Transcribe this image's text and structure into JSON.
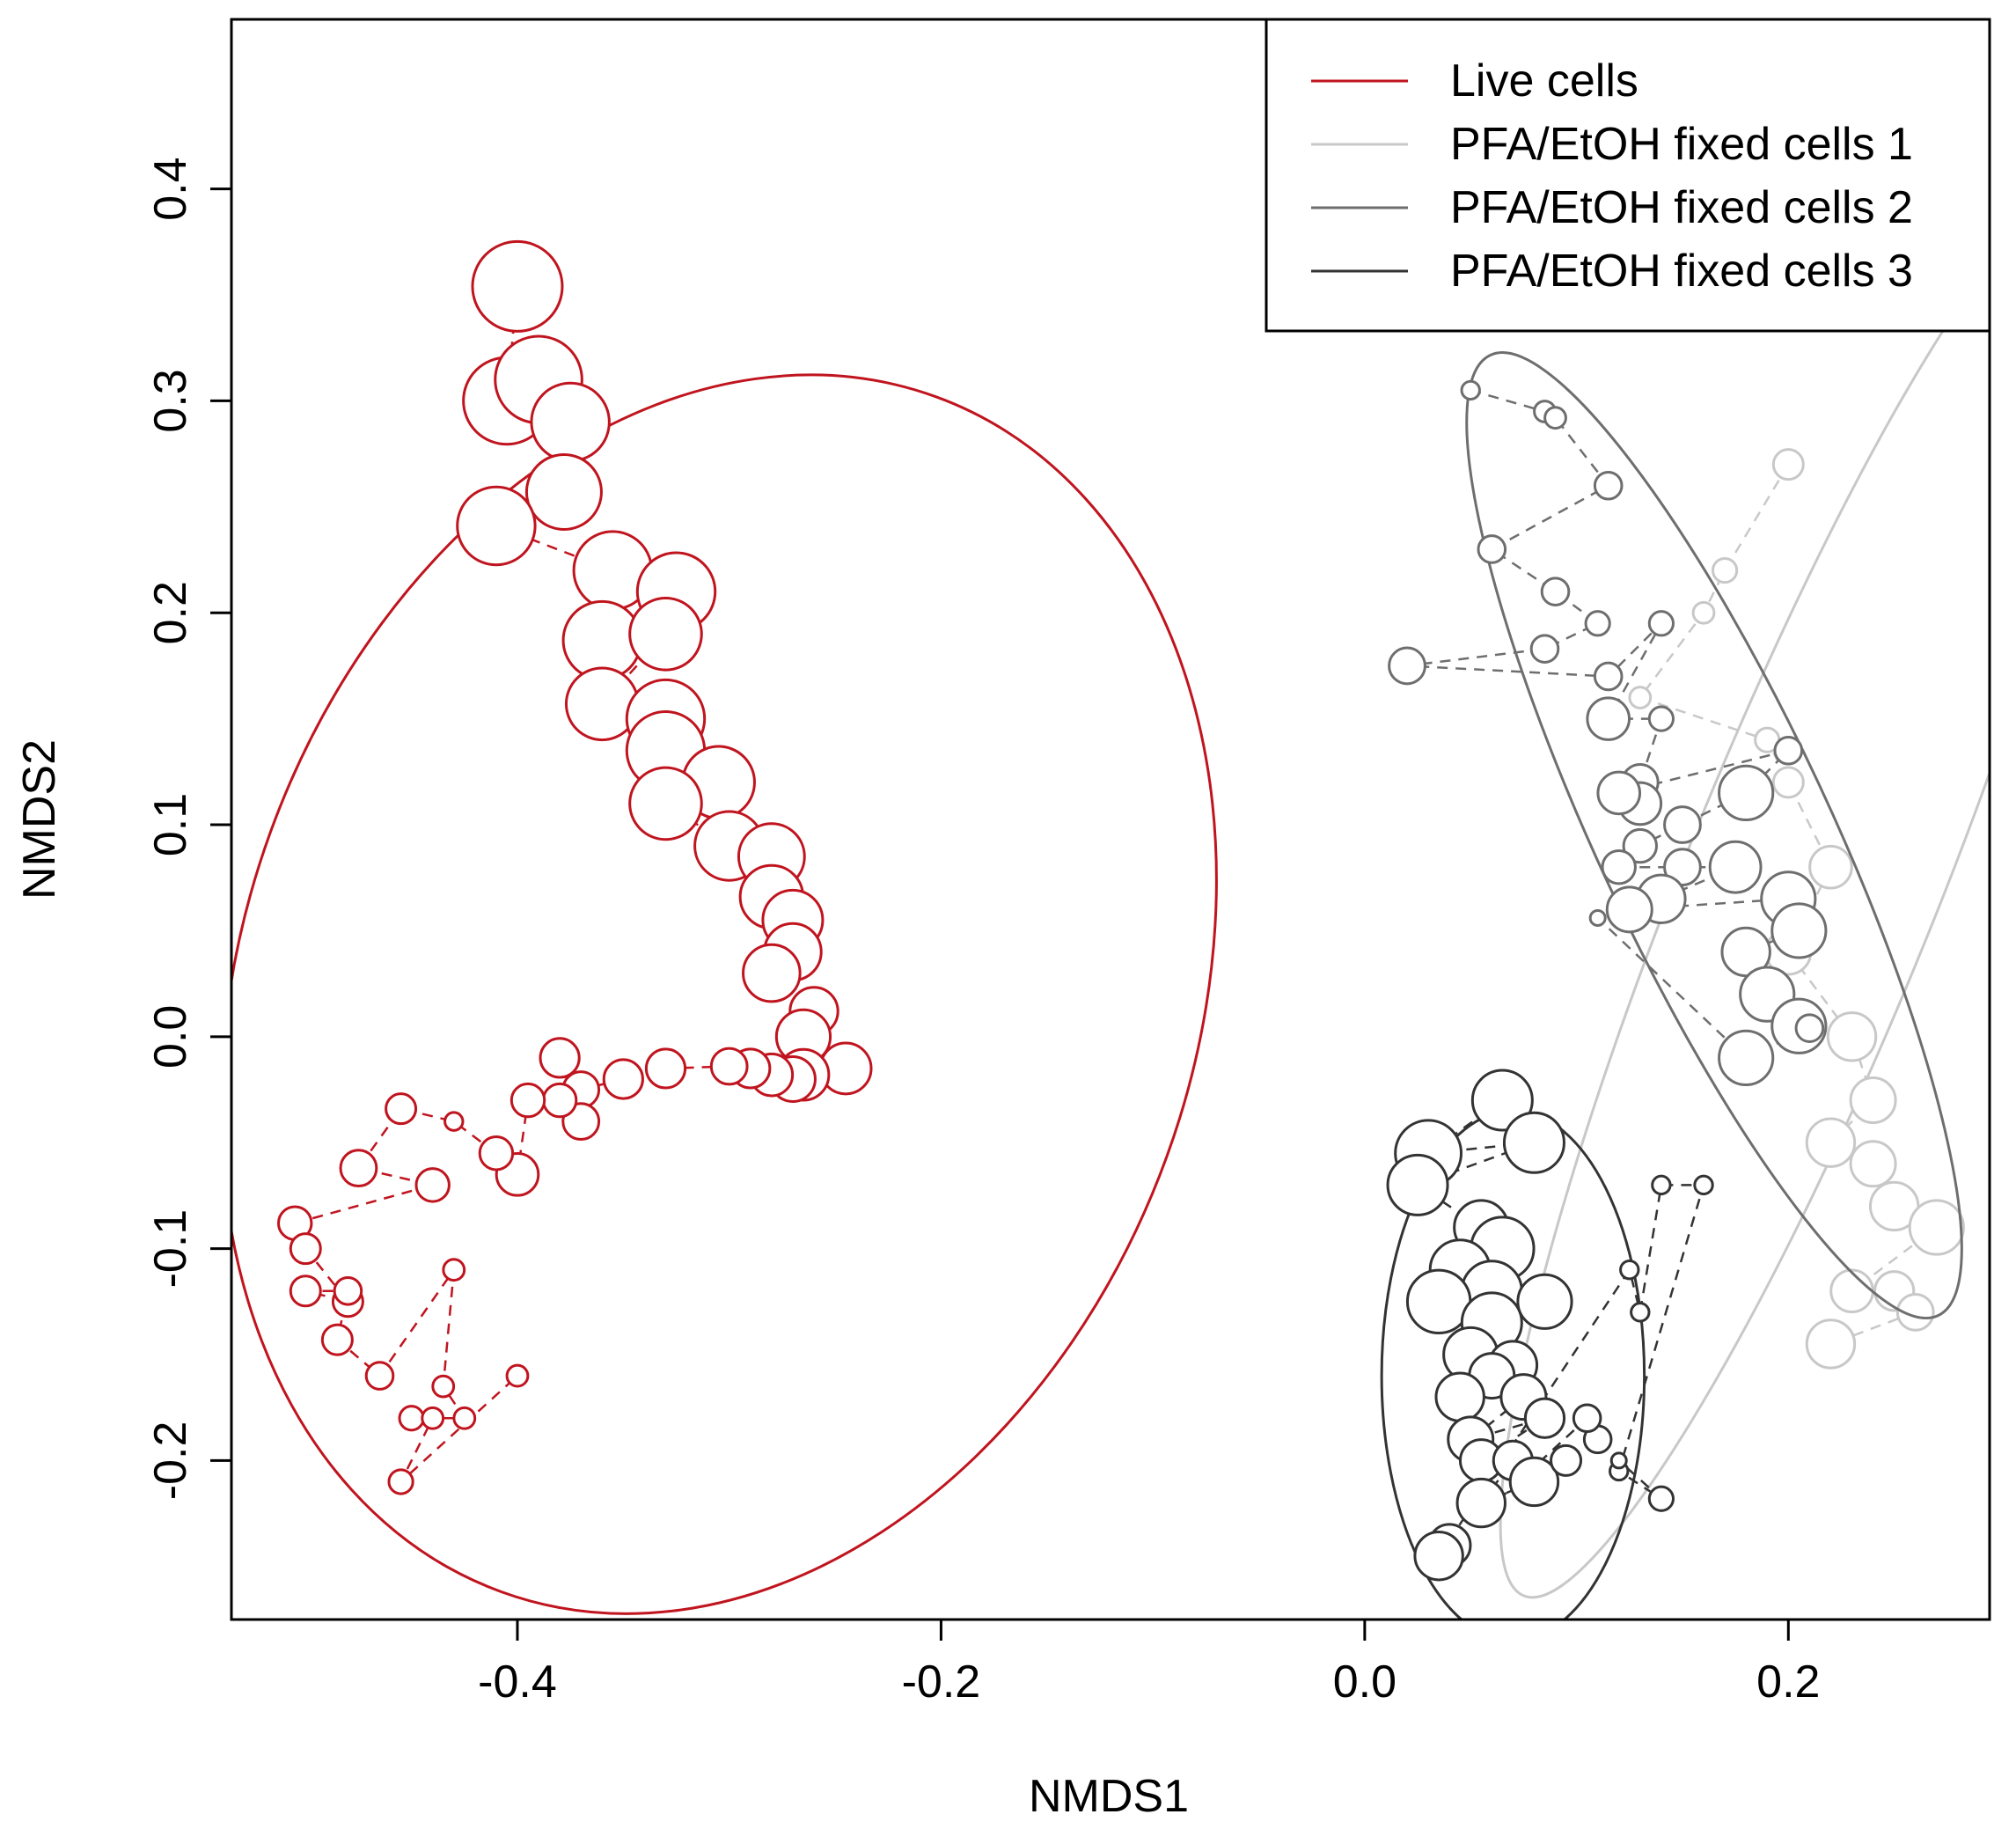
{
  "chart_data": {
    "type": "scatter",
    "title": "",
    "xlabel": "NMDS1",
    "ylabel": "NMDS2",
    "xlim": [
      -0.535,
      0.295
    ],
    "ylim": [
      -0.275,
      0.48
    ],
    "xticks": [
      -0.4,
      -0.2,
      0.0,
      0.2
    ],
    "xtick_labels": [
      "-0.4",
      "-0.2",
      "0.0",
      "0.2"
    ],
    "yticks": [
      -0.2,
      -0.1,
      0.0,
      0.1,
      0.2,
      0.3,
      0.4
    ],
    "ytick_labels": [
      "-0.2",
      "-0.1",
      "0.0",
      "0.1",
      "0.2",
      "0.3",
      "0.4"
    ],
    "grid": false,
    "legend_position": "top-right",
    "series": [
      {
        "name": "Live cells",
        "color": "#c0141e",
        "ellipse": {
          "cx": -0.305,
          "cy": 0.02,
          "rx": 0.225,
          "ry": 0.3,
          "angle_deg": 20
        },
        "path": [
          [
            -0.4,
            0.354,
            3
          ],
          [
            -0.405,
            0.3,
            2.9
          ],
          [
            -0.39,
            0.31,
            2.9
          ],
          [
            -0.375,
            0.29,
            2.6
          ],
          [
            -0.378,
            0.257,
            2.5
          ],
          [
            -0.41,
            0.241,
            2.6
          ],
          [
            -0.355,
            0.22,
            2.6
          ],
          [
            -0.325,
            0.21,
            2.6
          ],
          [
            -0.36,
            0.187,
            2.6
          ],
          [
            -0.33,
            0.19,
            2.4
          ],
          [
            -0.36,
            0.157,
            2.4
          ],
          [
            -0.33,
            0.15,
            2.6
          ],
          [
            -0.33,
            0.135,
            2.6
          ],
          [
            -0.305,
            0.12,
            2.4
          ],
          [
            -0.33,
            0.11,
            2.4
          ],
          [
            -0.3,
            0.09,
            2.3
          ],
          [
            -0.28,
            0.085,
            2.2
          ],
          [
            -0.28,
            0.066,
            2.1
          ],
          [
            -0.27,
            0.055,
            2.0
          ],
          [
            -0.27,
            0.04,
            1.9
          ],
          [
            -0.28,
            0.03,
            1.9
          ],
          [
            -0.26,
            0.012,
            1.6
          ],
          [
            -0.265,
            0.0,
            1.8
          ],
          [
            -0.245,
            -0.015,
            1.7
          ],
          [
            -0.265,
            -0.018,
            1.7
          ],
          [
            -0.27,
            -0.02,
            1.5
          ],
          [
            -0.28,
            -0.018,
            1.4
          ],
          [
            -0.29,
            -0.015,
            1.3
          ],
          [
            -0.3,
            -0.014,
            1.2
          ],
          [
            -0.33,
            -0.015,
            1.3
          ],
          [
            -0.35,
            -0.02,
            1.3
          ],
          [
            -0.37,
            -0.025,
            1.2
          ],
          [
            -0.38,
            -0.01,
            1.3
          ],
          [
            -0.37,
            -0.04,
            1.2
          ],
          [
            -0.38,
            -0.03,
            1.1
          ],
          [
            -0.395,
            -0.03,
            1.1
          ],
          [
            -0.4,
            -0.065,
            1.4
          ],
          [
            -0.41,
            -0.055,
            1.1
          ],
          [
            -0.43,
            -0.04,
            0.6
          ],
          [
            -0.455,
            -0.034,
            1.0
          ],
          [
            -0.475,
            -0.062,
            1.2
          ],
          [
            -0.44,
            -0.07,
            1.1
          ],
          [
            -0.505,
            -0.088,
            1.1
          ],
          [
            -0.5,
            -0.1,
            1.0
          ],
          [
            -0.48,
            -0.125,
            1.0
          ],
          [
            -0.5,
            -0.12,
            1.0
          ],
          [
            -0.48,
            -0.12,
            0.9
          ],
          [
            -0.485,
            -0.143,
            1.0
          ],
          [
            -0.465,
            -0.16,
            0.9
          ],
          [
            -0.43,
            -0.11,
            0.7
          ],
          [
            -0.435,
            -0.165,
            0.7
          ],
          [
            -0.425,
            -0.18,
            0.7
          ],
          [
            -0.45,
            -0.18,
            0.8
          ],
          [
            -0.44,
            -0.18,
            0.7
          ],
          [
            -0.455,
            -0.21,
            0.8
          ],
          [
            -0.4,
            -0.16,
            0.7
          ]
        ]
      },
      {
        "name": "PFA/EtOH fixed cells 1",
        "color": "#c8c8c8",
        "ellipse": {
          "cx": 0.21,
          "cy": 0.07,
          "rx": 0.06,
          "ry": 0.36,
          "angle_deg": 22
        },
        "path": [
          [
            0.2,
            0.27,
            1.0
          ],
          [
            0.17,
            0.22,
            0.8
          ],
          [
            0.16,
            0.2,
            0.7
          ],
          [
            0.13,
            0.16,
            0.7
          ],
          [
            0.19,
            0.14,
            0.8
          ],
          [
            0.2,
            0.12,
            1.0
          ],
          [
            0.22,
            0.08,
            1.4
          ],
          [
            0.2,
            0.04,
            1.5
          ],
          [
            0.23,
            0.0,
            1.6
          ],
          [
            0.24,
            -0.03,
            1.5
          ],
          [
            0.22,
            -0.05,
            1.6
          ],
          [
            0.24,
            -0.06,
            1.5
          ],
          [
            0.25,
            -0.08,
            1.6
          ],
          [
            0.27,
            -0.09,
            1.8
          ],
          [
            0.23,
            -0.12,
            1.4
          ],
          [
            0.25,
            -0.12,
            1.3
          ],
          [
            0.26,
            -0.13,
            1.2
          ],
          [
            0.22,
            -0.145,
            1.6
          ]
        ]
      },
      {
        "name": "PFA/EtOH fixed cells 2",
        "color": "#6e6e6e",
        "ellipse": {
          "cx": 0.165,
          "cy": 0.095,
          "rx": 0.055,
          "ry": 0.25,
          "angle_deg": -25
        },
        "path": [
          [
            0.05,
            0.305,
            0.6
          ],
          [
            0.085,
            0.295,
            0.7
          ],
          [
            0.09,
            0.292,
            0.7
          ],
          [
            0.115,
            0.26,
            0.9
          ],
          [
            0.06,
            0.23,
            0.9
          ],
          [
            0.09,
            0.21,
            0.9
          ],
          [
            0.11,
            0.195,
            0.8
          ],
          [
            0.085,
            0.183,
            0.9
          ],
          [
            0.02,
            0.175,
            1.2
          ],
          [
            0.115,
            0.17,
            0.9
          ],
          [
            0.14,
            0.195,
            0.8
          ],
          [
            0.115,
            0.15,
            1.4
          ],
          [
            0.14,
            0.15,
            0.8
          ],
          [
            0.13,
            0.12,
            1.2
          ],
          [
            0.13,
            0.11,
            1.4
          ],
          [
            0.12,
            0.115,
            1.4
          ],
          [
            0.2,
            0.135,
            0.9
          ],
          [
            0.18,
            0.115,
            1.8
          ],
          [
            0.15,
            0.1,
            1.2
          ],
          [
            0.13,
            0.09,
            1.1
          ],
          [
            0.12,
            0.08,
            1.1
          ],
          [
            0.15,
            0.08,
            1.2
          ],
          [
            0.175,
            0.08,
            1.7
          ],
          [
            0.14,
            0.065,
            1.6
          ],
          [
            0.125,
            0.06,
            1.5
          ],
          [
            0.2,
            0.065,
            1.8
          ],
          [
            0.205,
            0.05,
            1.8
          ],
          [
            0.18,
            0.04,
            1.6
          ],
          [
            0.19,
            0.02,
            1.8
          ],
          [
            0.205,
            0.005,
            1.8
          ],
          [
            0.21,
            0.003,
            0.4
          ],
          [
            0.21,
            0.004,
            0.9
          ],
          [
            0.18,
            -0.01,
            1.8
          ],
          [
            0.11,
            0.056,
            0.5
          ]
        ]
      },
      {
        "name": "PFA/EtOH fixed cells 3",
        "color": "#333333",
        "ellipse": {
          "cx": 0.07,
          "cy": -0.16,
          "rx": 0.062,
          "ry": 0.125,
          "angle_deg": 0
        },
        "path": [
          [
            0.065,
            -0.03,
            2.0
          ],
          [
            0.03,
            -0.055,
            2.2
          ],
          [
            0.08,
            -0.05,
            2.0
          ],
          [
            0.025,
            -0.07,
            2.0
          ],
          [
            0.055,
            -0.09,
            1.8
          ],
          [
            0.065,
            -0.1,
            2.1
          ],
          [
            0.045,
            -0.11,
            2.0
          ],
          [
            0.06,
            -0.12,
            2.0
          ],
          [
            0.035,
            -0.125,
            2.1
          ],
          [
            0.06,
            -0.135,
            2.0
          ],
          [
            0.085,
            -0.125,
            1.8
          ],
          [
            0.05,
            -0.15,
            1.8
          ],
          [
            0.07,
            -0.155,
            1.6
          ],
          [
            0.06,
            -0.16,
            1.5
          ],
          [
            0.045,
            -0.17,
            1.6
          ],
          [
            0.075,
            -0.17,
            1.5
          ],
          [
            0.05,
            -0.19,
            1.5
          ],
          [
            0.085,
            -0.18,
            1.3
          ],
          [
            0.055,
            -0.2,
            1.4
          ],
          [
            0.07,
            -0.2,
            1.3
          ],
          [
            0.055,
            -0.22,
            1.6
          ],
          [
            0.08,
            -0.21,
            1.6
          ],
          [
            0.095,
            -0.2,
            1.0
          ],
          [
            0.11,
            -0.19,
            0.9
          ],
          [
            0.105,
            -0.18,
            0.9
          ],
          [
            0.04,
            -0.24,
            1.4
          ],
          [
            0.035,
            -0.245,
            1.6
          ],
          [
            0.125,
            -0.11,
            0.6
          ],
          [
            0.13,
            -0.13,
            0.6
          ],
          [
            0.14,
            -0.07,
            0.6
          ],
          [
            0.16,
            -0.07,
            0.6
          ],
          [
            0.12,
            -0.205,
            0.6
          ],
          [
            0.14,
            -0.218,
            0.8
          ],
          [
            0.12,
            -0.2,
            0.5
          ]
        ]
      }
    ]
  }
}
